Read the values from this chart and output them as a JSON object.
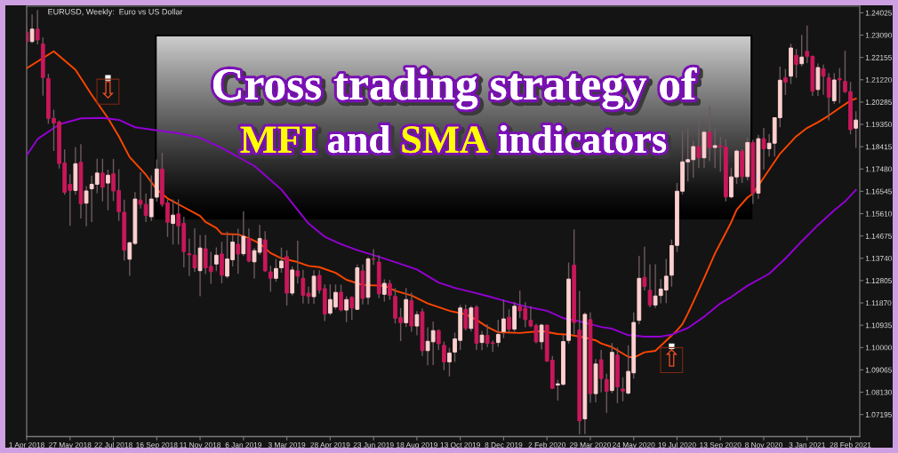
{
  "chart_data": {
    "type": "candlestick",
    "title": "Cross trading strategy of\nMFI and SMA indicators",
    "subtitle": "EURUSD, Weekly:  Euro vs US Dollar",
    "x": [
      "2018-04-01",
      "2018-04-08",
      "2018-04-15",
      "2018-04-22",
      "2018-04-29",
      "2018-05-06",
      "2018-05-13",
      "2018-05-20",
      "2018-05-27",
      "2018-06-03",
      "2018-06-10",
      "2018-06-17",
      "2018-06-24",
      "2018-07-01",
      "2018-07-08",
      "2018-07-15",
      "2018-07-22",
      "2018-07-29",
      "2018-08-05",
      "2018-08-12",
      "2018-08-19",
      "2018-08-26",
      "2018-09-02",
      "2018-09-09",
      "2018-09-16",
      "2018-09-23",
      "2018-09-30",
      "2018-10-07",
      "2018-10-14",
      "2018-10-21",
      "2018-10-28",
      "2018-11-04",
      "2018-11-11",
      "2018-11-18",
      "2018-11-25",
      "2018-12-02",
      "2018-12-09",
      "2018-12-16",
      "2018-12-23",
      "2018-12-30",
      "2019-01-06",
      "2019-01-13",
      "2019-01-20",
      "2019-01-27",
      "2019-02-03",
      "2019-02-10",
      "2019-02-17",
      "2019-02-24",
      "2019-03-03",
      "2019-03-10",
      "2019-03-17",
      "2019-03-24",
      "2019-03-31",
      "2019-04-07",
      "2019-04-14",
      "2019-04-21",
      "2019-04-28",
      "2019-05-05",
      "2019-05-12",
      "2019-05-19",
      "2019-05-26",
      "2019-06-02",
      "2019-06-09",
      "2019-06-16",
      "2019-06-23",
      "2019-06-30",
      "2019-07-07",
      "2019-07-14",
      "2019-07-21",
      "2019-07-28",
      "2019-08-04",
      "2019-08-11",
      "2019-08-18",
      "2019-08-25",
      "2019-09-01",
      "2019-09-08",
      "2019-09-15",
      "2019-09-22",
      "2019-09-29",
      "2019-10-06",
      "2019-10-13",
      "2019-10-20",
      "2019-10-27",
      "2019-11-03",
      "2019-11-10",
      "2019-11-17",
      "2019-11-24",
      "2019-12-01",
      "2019-12-08",
      "2019-12-15",
      "2019-12-22",
      "2019-12-29",
      "2020-01-05",
      "2020-01-12",
      "2020-01-19",
      "2020-01-26",
      "2020-02-02",
      "2020-02-09",
      "2020-02-16",
      "2020-02-23",
      "2020-03-01",
      "2020-03-08",
      "2020-03-15",
      "2020-03-22",
      "2020-03-29",
      "2020-04-05",
      "2020-04-12",
      "2020-04-19",
      "2020-04-26",
      "2020-05-03",
      "2020-05-10",
      "2020-05-17",
      "2020-05-24",
      "2020-05-31",
      "2020-06-07",
      "2020-06-14",
      "2020-06-21",
      "2020-06-28",
      "2020-07-05",
      "2020-07-12",
      "2020-07-19",
      "2020-07-26",
      "2020-08-02",
      "2020-08-09",
      "2020-08-16",
      "2020-08-23",
      "2020-08-30",
      "2020-09-06",
      "2020-09-13",
      "2020-09-20",
      "2020-09-27",
      "2020-10-04",
      "2020-10-11",
      "2020-10-18",
      "2020-10-25",
      "2020-11-01",
      "2020-11-08",
      "2020-11-15",
      "2020-11-22",
      "2020-11-29",
      "2020-12-06",
      "2020-12-13",
      "2020-12-20",
      "2020-12-27",
      "2021-01-03",
      "2021-01-10",
      "2021-01-17",
      "2021-01-24",
      "2021-01-31",
      "2021-02-07",
      "2021-02-14",
      "2021-02-21",
      "2021-02-28",
      "2021-03-07"
    ],
    "ohlc": [
      [
        1.232,
        1.2345,
        1.2215,
        1.2282
      ],
      [
        1.2282,
        1.2396,
        1.2276,
        1.2334
      ],
      [
        1.2334,
        1.2414,
        1.227,
        1.2289
      ],
      [
        1.2272,
        1.2299,
        1.2055,
        1.2131
      ],
      [
        1.2127,
        1.2146,
        1.1938,
        1.196
      ],
      [
        1.196,
        1.1996,
        1.1823,
        1.1941
      ],
      [
        1.1945,
        1.1951,
        1.175,
        1.1771
      ],
      [
        1.1773,
        1.183,
        1.164,
        1.165
      ],
      [
        1.1684,
        1.1726,
        1.151,
        1.1658
      ],
      [
        1.1658,
        1.184,
        1.164,
        1.177
      ],
      [
        1.1776,
        1.1852,
        1.1541,
        1.1602
      ],
      [
        1.1605,
        1.1676,
        1.1508,
        1.1656
      ],
      [
        1.1665,
        1.172,
        1.1526,
        1.1684
      ],
      [
        1.1684,
        1.1791,
        1.1647,
        1.1731
      ],
      [
        1.1731,
        1.1791,
        1.1612,
        1.1672
      ],
      [
        1.1689,
        1.1745,
        1.1575,
        1.1722
      ],
      [
        1.1728,
        1.179,
        1.1614,
        1.1656
      ],
      [
        1.1658,
        1.1747,
        1.153,
        1.1569
      ],
      [
        1.1567,
        1.162,
        1.1365,
        1.1408
      ],
      [
        1.137,
        1.1444,
        1.1301,
        1.1439
      ],
      [
        1.1436,
        1.1651,
        1.143,
        1.1622
      ],
      [
        1.1618,
        1.1734,
        1.1582,
        1.16
      ],
      [
        1.16,
        1.1645,
        1.1526,
        1.1553
      ],
      [
        1.1548,
        1.1721,
        1.153,
        1.1622
      ],
      [
        1.163,
        1.1788,
        1.1611,
        1.1748
      ],
      [
        1.1748,
        1.1815,
        1.159,
        1.16
      ],
      [
        1.1606,
        1.1621,
        1.1463,
        1.1525
      ],
      [
        1.152,
        1.1621,
        1.1432,
        1.1555
      ],
      [
        1.156,
        1.1621,
        1.1432,
        1.151
      ],
      [
        1.152,
        1.1548,
        1.1336,
        1.1402
      ],
      [
        1.1393,
        1.1456,
        1.13,
        1.1388
      ],
      [
        1.1387,
        1.15,
        1.1316,
        1.1334
      ],
      [
        1.1322,
        1.1472,
        1.1215,
        1.1417
      ],
      [
        1.1414,
        1.1472,
        1.1308,
        1.1334
      ],
      [
        1.134,
        1.1401,
        1.1267,
        1.1318
      ],
      [
        1.135,
        1.142,
        1.132,
        1.1387
      ],
      [
        1.1392,
        1.1443,
        1.1269,
        1.1303
      ],
      [
        1.1299,
        1.1486,
        1.129,
        1.1371
      ],
      [
        1.1368,
        1.1474,
        1.134,
        1.1442
      ],
      [
        1.1433,
        1.1498,
        1.1309,
        1.1392
      ],
      [
        1.1393,
        1.157,
        1.1383,
        1.1466
      ],
      [
        1.1457,
        1.1499,
        1.1357,
        1.1362
      ],
      [
        1.1359,
        1.1417,
        1.1289,
        1.1406
      ],
      [
        1.1399,
        1.1514,
        1.1388,
        1.1457
      ],
      [
        1.1451,
        1.1488,
        1.1316,
        1.1321
      ],
      [
        1.1317,
        1.1342,
        1.1234,
        1.129
      ],
      [
        1.129,
        1.1371,
        1.1275,
        1.1331
      ],
      [
        1.1334,
        1.1419,
        1.1314,
        1.1362
      ],
      [
        1.1381,
        1.1408,
        1.1176,
        1.1228
      ],
      [
        1.1228,
        1.134,
        1.1218,
        1.1325
      ],
      [
        1.1321,
        1.1448,
        1.1268,
        1.1299
      ],
      [
        1.129,
        1.1326,
        1.1184,
        1.1219
      ],
      [
        1.1228,
        1.1255,
        1.1183,
        1.1214
      ],
      [
        1.1213,
        1.1324,
        1.1183,
        1.1299
      ],
      [
        1.1302,
        1.1324,
        1.1226,
        1.124
      ],
      [
        1.1247,
        1.1264,
        1.1111,
        1.1141
      ],
      [
        1.1144,
        1.1265,
        1.1135,
        1.1201
      ],
      [
        1.117,
        1.1264,
        1.116,
        1.1231
      ],
      [
        1.1232,
        1.1263,
        1.1152,
        1.1157
      ],
      [
        1.1157,
        1.1215,
        1.1106,
        1.1201
      ],
      [
        1.121,
        1.1215,
        1.1116,
        1.1166
      ],
      [
        1.116,
        1.1348,
        1.1158,
        1.1334
      ],
      [
        1.1321,
        1.1348,
        1.1181,
        1.1206
      ],
      [
        1.121,
        1.138,
        1.1181,
        1.1371
      ],
      [
        1.1371,
        1.1412,
        1.1346,
        1.137
      ],
      [
        1.1358,
        1.1386,
        1.1207,
        1.1225
      ],
      [
        1.1223,
        1.1286,
        1.1193,
        1.1269
      ],
      [
        1.1268,
        1.1283,
        1.12,
        1.1219
      ],
      [
        1.1214,
        1.1249,
        1.1101,
        1.1123
      ],
      [
        1.1126,
        1.1166,
        1.1027,
        1.1104
      ],
      [
        1.1104,
        1.1249,
        1.1086,
        1.1201
      ],
      [
        1.1197,
        1.123,
        1.1066,
        1.109
      ],
      [
        1.109,
        1.1153,
        1.1051,
        1.1138
      ],
      [
        1.115,
        1.1164,
        1.0965,
        1.0987
      ],
      [
        1.0987,
        1.1085,
        1.0926,
        1.1026
      ],
      [
        1.1024,
        1.1109,
        1.0927,
        1.1071
      ],
      [
        1.1071,
        1.1076,
        1.099,
        1.1016
      ],
      [
        1.1009,
        1.1025,
        1.0905,
        1.094
      ],
      [
        1.094,
        1.0999,
        1.0879,
        1.0977
      ],
      [
        1.0981,
        1.1062,
        1.094,
        1.1036
      ],
      [
        1.103,
        1.1179,
        1.099,
        1.1166
      ],
      [
        1.116,
        1.118,
        1.1072,
        1.108
      ],
      [
        1.108,
        1.1175,
        1.1067,
        1.1166
      ],
      [
        1.1169,
        1.1177,
        1.099,
        1.1018
      ],
      [
        1.1021,
        1.107,
        1.0989,
        1.1052
      ],
      [
        1.1051,
        1.1097,
        1.1002,
        1.1018
      ],
      [
        1.102,
        1.103,
        1.0981,
        1.1017
      ],
      [
        1.1021,
        1.1116,
        1.1003,
        1.1055
      ],
      [
        1.1067,
        1.12,
        1.104,
        1.112
      ],
      [
        1.1127,
        1.116,
        1.1065,
        1.1077
      ],
      [
        1.1077,
        1.119,
        1.1065,
        1.1173
      ],
      [
        1.1173,
        1.1239,
        1.1124,
        1.1154
      ],
      [
        1.1164,
        1.119,
        1.1085,
        1.1117
      ],
      [
        1.1114,
        1.1173,
        1.1086,
        1.109
      ],
      [
        1.1092,
        1.11,
        1.1018,
        1.1024
      ],
      [
        1.1024,
        1.11,
        1.0992,
        1.1094
      ],
      [
        1.1094,
        1.1095,
        1.094,
        1.0943
      ],
      [
        1.0947,
        1.0965,
        1.0827,
        1.0829
      ],
      [
        1.0843,
        1.0865,
        1.0778,
        1.0848
      ],
      [
        1.0846,
        1.1053,
        1.084,
        1.1025
      ],
      [
        1.103,
        1.1356,
        1.1017,
        1.1287
      ],
      [
        1.1345,
        1.1495,
        1.1055,
        1.1105
      ],
      [
        1.1073,
        1.1237,
        1.0636,
        1.0693
      ],
      [
        1.0701,
        1.1147,
        1.0637,
        1.1139
      ],
      [
        1.1117,
        1.1147,
        1.0768,
        1.0807
      ],
      [
        1.0807,
        1.0952,
        1.077,
        1.0931
      ],
      [
        1.0949,
        1.099,
        1.0812,
        1.087
      ],
      [
        1.0866,
        1.089,
        1.0727,
        1.0817
      ],
      [
        1.082,
        1.1019,
        1.0809,
        1.098
      ],
      [
        1.0968,
        1.1,
        1.0767,
        1.0835
      ],
      [
        1.0826,
        1.0875,
        1.0775,
        1.0818
      ],
      [
        1.0809,
        1.1009,
        1.0803,
        1.09
      ],
      [
        1.0894,
        1.1147,
        1.087,
        1.1105
      ],
      [
        1.1114,
        1.1384,
        1.1098,
        1.129
      ],
      [
        1.1294,
        1.1422,
        1.1239,
        1.1256
      ],
      [
        1.124,
        1.1349,
        1.1168,
        1.1178
      ],
      [
        1.1178,
        1.1349,
        1.1166,
        1.1216
      ],
      [
        1.1218,
        1.1287,
        1.1185,
        1.1245
      ],
      [
        1.1241,
        1.1371,
        1.1186,
        1.1299
      ],
      [
        1.1303,
        1.1452,
        1.1255,
        1.1427
      ],
      [
        1.1428,
        1.1689,
        1.14,
        1.1655
      ],
      [
        1.1655,
        1.1908,
        1.1642,
        1.1778
      ],
      [
        1.1778,
        1.1916,
        1.1696,
        1.1787
      ],
      [
        1.1787,
        1.1866,
        1.1711,
        1.1842
      ],
      [
        1.1842,
        1.1966,
        1.1753,
        1.1795
      ],
      [
        1.1795,
        1.1917,
        1.1753,
        1.1902
      ],
      [
        1.1902,
        1.2011,
        1.1782,
        1.1838
      ],
      [
        1.1838,
        1.1917,
        1.1752,
        1.1846
      ],
      [
        1.1846,
        1.1882,
        1.1737,
        1.184
      ],
      [
        1.184,
        1.1873,
        1.1612,
        1.1631
      ],
      [
        1.1631,
        1.1754,
        1.1625,
        1.1715
      ],
      [
        1.1715,
        1.1831,
        1.1686,
        1.1823
      ],
      [
        1.1823,
        1.183,
        1.1689,
        1.1716
      ],
      [
        1.1716,
        1.188,
        1.1701,
        1.1859
      ],
      [
        1.1859,
        1.187,
        1.1602,
        1.1647
      ],
      [
        1.1647,
        1.1891,
        1.1622,
        1.1875
      ],
      [
        1.1875,
        1.192,
        1.1745,
        1.1833
      ],
      [
        1.1833,
        1.1894,
        1.18,
        1.1856
      ],
      [
        1.1856,
        1.1964,
        1.18,
        1.1963
      ],
      [
        1.1963,
        1.2177,
        1.1923,
        1.212
      ],
      [
        1.213,
        1.2167,
        1.2058,
        1.2112
      ],
      [
        1.2137,
        1.2273,
        1.2104,
        1.2255
      ],
      [
        1.2224,
        1.225,
        1.213,
        1.2186
      ],
      [
        1.2189,
        1.231,
        1.2178,
        1.2217
      ],
      [
        1.2241,
        1.2349,
        1.2192,
        1.222
      ],
      [
        1.222,
        1.2223,
        1.2054,
        1.2074
      ],
      [
        1.2081,
        1.219,
        1.2054,
        1.2173
      ],
      [
        1.2168,
        1.2185,
        1.2059,
        1.2137
      ],
      [
        1.213,
        1.215,
        1.1952,
        1.2049
      ],
      [
        1.2034,
        1.215,
        1.2021,
        1.2121
      ],
      [
        1.2127,
        1.217,
        1.2023,
        1.2121
      ],
      [
        1.2115,
        1.2243,
        1.2066,
        1.2072
      ],
      [
        1.2072,
        1.2113,
        1.1893,
        1.1913
      ],
      [
        1.1919,
        1.199,
        1.1836,
        1.1953
      ]
    ],
    "colors": [
      "#c8185a",
      "#ffd0d0",
      "#c8185a",
      "#c8185a",
      "#c8185a",
      "#c8185a",
      "#c8185a",
      "#c8185a",
      "#c8185a",
      "#ffd0d0",
      "#c8185a",
      "#ffd0d0",
      "#ffd0d0",
      "#ffd0d0",
      "#c8185a",
      "#ffd0d0",
      "#c8185a",
      "#c8185a",
      "#c8185a",
      "#ffd0d0",
      "#ffd0d0",
      "#c8185a",
      "#c8185a",
      "#ffd0d0",
      "#ffd0d0",
      "#c8185a",
      "#c8185a",
      "#ffd0d0",
      "#c8185a",
      "#c8185a",
      "#c8185a",
      "#c8185a",
      "#ffd0d0",
      "#c8185a",
      "#c8185a",
      "#ffd0d0",
      "#c8185a",
      "#ffd0d0",
      "#ffd0d0",
      "#c8185a",
      "#ffd0d0",
      "#c8185a",
      "#ffd0d0",
      "#ffd0d0",
      "#c8185a",
      "#c8185a",
      "#ffd0d0",
      "#ffd0d0",
      "#c8185a",
      "#ffd0d0",
      "#c8185a",
      "#c8185a",
      "#c8185a",
      "#ffd0d0",
      "#c8185a",
      "#c8185a",
      "#ffd0d0",
      "#ffd0d0",
      "#c8185a",
      "#ffd0d0",
      "#c8185a",
      "#ffd0d0",
      "#c8185a",
      "#ffd0d0",
      "#c8185a",
      "#c8185a",
      "#ffd0d0",
      "#c8185a",
      "#c8185a",
      "#c8185a",
      "#ffd0d0",
      "#c8185a",
      "#ffd0d0",
      "#c8185a",
      "#ffd0d0",
      "#ffd0d0",
      "#c8185a",
      "#c8185a",
      "#ffd0d0",
      "#ffd0d0",
      "#ffd0d0",
      "#c8185a",
      "#ffd0d0",
      "#c8185a",
      "#ffd0d0",
      "#c8185a",
      "#c8185a",
      "#ffd0d0",
      "#ffd0d0",
      "#c8185a",
      "#ffd0d0",
      "#c8185a",
      "#c8185a",
      "#c8185a",
      "#c8185a",
      "#ffd0d0",
      "#c8185a",
      "#c8185a",
      "#ffd0d0",
      "#ffd0d0",
      "#ffd0d0",
      "#c8185a",
      "#c8185a",
      "#ffd0d0",
      "#c8185a",
      "#ffd0d0",
      "#c8185a",
      "#c8185a",
      "#ffd0d0",
      "#c8185a",
      "#c8185a",
      "#ffd0d0",
      "#ffd0d0",
      "#ffd0d0",
      "#c8185a",
      "#c8185a",
      "#ffd0d0",
      "#ffd0d0",
      "#ffd0d0",
      "#ffd0d0",
      "#ffd0d0",
      "#ffd0d0",
      "#ffd0d0",
      "#ffd0d0",
      "#c8185a",
      "#ffd0d0",
      "#c8185a",
      "#ffd0d0",
      "#c8185a",
      "#c8185a",
      "#ffd0d0",
      "#ffd0d0",
      "#c8185a",
      "#ffd0d0",
      "#c8185a",
      "#ffd0d0",
      "#c8185a",
      "#ffd0d0",
      "#ffd0d0",
      "#ffd0d0",
      "#c8185a",
      "#ffd0d0",
      "#c8185a",
      "#ffd0d0",
      "#c8185a",
      "#c8185a",
      "#ffd0d0",
      "#c8185a",
      "#c8185a",
      "#ffd0d0",
      "#c8185a",
      "#c8185a",
      "#c8185a",
      "#ffd0d0"
    ],
    "series": [
      {
        "type": "line",
        "color": "#ff4500",
        "x": [
          "2018-04-01",
          "2018-05-06",
          "2018-06-03",
          "2018-06-24",
          "2018-07-15",
          "2018-07-29",
          "2018-08-12",
          "2018-09-02",
          "2018-09-16",
          "2018-09-30",
          "2018-10-21",
          "2018-11-11",
          "2018-11-18",
          "2018-12-02",
          "2018-12-09",
          "2018-12-30",
          "2019-01-13",
          "2019-01-27",
          "2019-02-10",
          "2019-02-24",
          "2019-03-17",
          "2019-03-31",
          "2019-04-14",
          "2019-05-05",
          "2019-05-19",
          "2019-06-09",
          "2019-07-07",
          "2019-07-21",
          "2019-08-11",
          "2019-09-01",
          "2019-09-29",
          "2019-10-20",
          "2019-11-03",
          "2019-11-17",
          "2019-12-01",
          "2019-12-29",
          "2020-01-26",
          "2020-02-16",
          "2020-03-01",
          "2020-03-22",
          "2020-04-05",
          "2020-04-12",
          "2020-04-26",
          "2020-05-17",
          "2020-05-24",
          "2020-06-07",
          "2020-06-21",
          "2020-07-05",
          "2020-07-12",
          "2020-07-19",
          "2020-07-26",
          "2020-08-02",
          "2020-08-09",
          "2020-08-23",
          "2020-09-06",
          "2020-09-20",
          "2020-09-27",
          "2020-10-04",
          "2020-10-18",
          "2020-10-25",
          "2020-11-08",
          "2020-11-29",
          "2020-12-20",
          "2021-01-03",
          "2021-01-17",
          "2021-01-31",
          "2021-02-14",
          "2021-02-28",
          "2021-03-07"
        ],
        "values": [
          1.217,
          1.2241,
          1.2164,
          1.2059,
          1.1961,
          1.1885,
          1.1798,
          1.1724,
          1.1662,
          1.1625,
          1.1588,
          1.1551,
          1.1526,
          1.1501,
          1.1476,
          1.1474,
          1.1458,
          1.1436,
          1.1396,
          1.1374,
          1.1358,
          1.1342,
          1.1337,
          1.1313,
          1.1284,
          1.1262,
          1.1259,
          1.1238,
          1.1218,
          1.1185,
          1.1154,
          1.1139,
          1.1116,
          1.1086,
          1.1064,
          1.1061,
          1.1069,
          1.1057,
          1.1054,
          1.1042,
          1.103,
          1.1017,
          1.1002,
          1.0961,
          1.0958,
          1.098,
          1.0986,
          1.1029,
          1.105,
          1.1072,
          1.1098,
          1.1143,
          1.1191,
          1.1291,
          1.1394,
          1.1481,
          1.1525,
          1.1577,
          1.1629,
          1.1645,
          1.1712,
          1.1812,
          1.1885,
          1.192,
          1.1944,
          1.1972,
          1.2004,
          1.2034,
          1.2043
        ]
      },
      {
        "type": "line",
        "color": "#9400d3",
        "x": [
          "2018-04-01",
          "2018-04-15",
          "2018-05-13",
          "2018-06-10",
          "2018-07-08",
          "2018-07-29",
          "2018-08-19",
          "2018-09-16",
          "2018-10-14",
          "2018-11-11",
          "2018-12-09",
          "2019-01-20",
          "2019-02-24",
          "2019-03-31",
          "2019-04-21",
          "2019-05-12",
          "2019-06-02",
          "2019-06-30",
          "2019-07-21",
          "2019-08-18",
          "2019-09-15",
          "2019-10-06",
          "2019-10-27",
          "2019-11-17",
          "2019-12-08",
          "2020-01-05",
          "2020-02-02",
          "2020-02-23",
          "2020-03-15",
          "2020-04-12",
          "2020-04-26",
          "2020-05-17",
          "2020-06-07",
          "2020-06-28",
          "2020-07-12",
          "2020-08-02",
          "2020-08-23",
          "2020-09-13",
          "2020-09-27",
          "2020-10-18",
          "2020-11-15",
          "2020-12-06",
          "2020-12-27",
          "2021-01-17",
          "2021-02-07",
          "2021-02-21",
          "2021-03-07"
        ],
        "values": [
          1.1805,
          1.1873,
          1.1935,
          1.196,
          1.1962,
          1.1954,
          1.1923,
          1.191,
          1.1898,
          1.1879,
          1.1836,
          1.1761,
          1.1662,
          1.152,
          1.1464,
          1.1433,
          1.1408,
          1.138,
          1.1358,
          1.1327,
          1.1272,
          1.125,
          1.1233,
          1.1216,
          1.1197,
          1.1172,
          1.1154,
          1.1123,
          1.111,
          1.1086,
          1.1079,
          1.1052,
          1.1046,
          1.1046,
          1.1054,
          1.1082,
          1.1129,
          1.1185,
          1.1212,
          1.1259,
          1.1309,
          1.1373,
          1.1445,
          1.1513,
          1.1575,
          1.1612,
          1.166
        ]
      }
    ],
    "xlim": [
      "2018-04-01",
      "2021-03-12"
    ],
    "xticks": [
      {
        "value": "2018-04-01",
        "label": "1 Apr 2018"
      },
      {
        "value": "2018-05-27",
        "label": "27 May 2018"
      },
      {
        "value": "2018-07-22",
        "label": "22 Jul 2018"
      },
      {
        "value": "2018-09-16",
        "label": "16 Sep 2018"
      },
      {
        "value": "2018-11-11",
        "label": "11 Nov 2018"
      },
      {
        "value": "2019-01-06",
        "label": "6 Jan 2019"
      },
      {
        "value": "2019-03-03",
        "label": "3 Mar 2019"
      },
      {
        "value": "2019-04-28",
        "label": "28 Apr 2019"
      },
      {
        "value": "2019-06-23",
        "label": "23 Jun 2019"
      },
      {
        "value": "2019-08-18",
        "label": "18 Aug 2019"
      },
      {
        "value": "2019-10-13",
        "label": "13 Oct 2019"
      },
      {
        "value": "2019-12-08",
        "label": "8 Dec 2019"
      },
      {
        "value": "2020-02-02",
        "label": "2 Feb 2020"
      },
      {
        "value": "2020-03-29",
        "label": "29 Mar 2020"
      },
      {
        "value": "2020-05-24",
        "label": "24 May 2020"
      },
      {
        "value": "2020-07-19",
        "label": "19 Jul 2020"
      },
      {
        "value": "2020-09-13",
        "label": "13 Sep 2020"
      },
      {
        "value": "2020-11-08",
        "label": "8 Nov 2020"
      },
      {
        "value": "2021-01-03",
        "label": "3 Jan 2021"
      },
      {
        "value": "2021-02-28",
        "label": "28 Feb 2021"
      }
    ],
    "ylim": [
      1.0627,
      1.243
    ],
    "yticks": [
      1.24025,
      {
        "value": 1.2309,
        "label": "1.23090"
      },
      1.22155,
      {
        "value": 1.2122,
        "label": "1.21220"
      },
      1.20285,
      {
        "value": 1.1935,
        "label": "1.19350"
      },
      1.18415,
      {
        "value": 1.1748,
        "label": "1.17480"
      },
      1.16545,
      {
        "value": 1.1561,
        "label": "1.15610"
      },
      1.14675,
      {
        "value": 1.1374,
        "label": "1.13740"
      },
      1.12805,
      {
        "value": 1.1187,
        "label": "1.11870"
      },
      1.10935,
      {
        "value": 1.1,
        "label": "1.10000"
      },
      1.09065,
      {
        "value": 1.0813,
        "label": "1.08130"
      },
      1.07195
    ],
    "annotations": [
      {
        "text": "⇩",
        "x": "2018-07-15",
        "y": 1.213
      },
      {
        "text": "⇧",
        "x": "2020-07-12",
        "y": 1.1005
      }
    ]
  }
}
